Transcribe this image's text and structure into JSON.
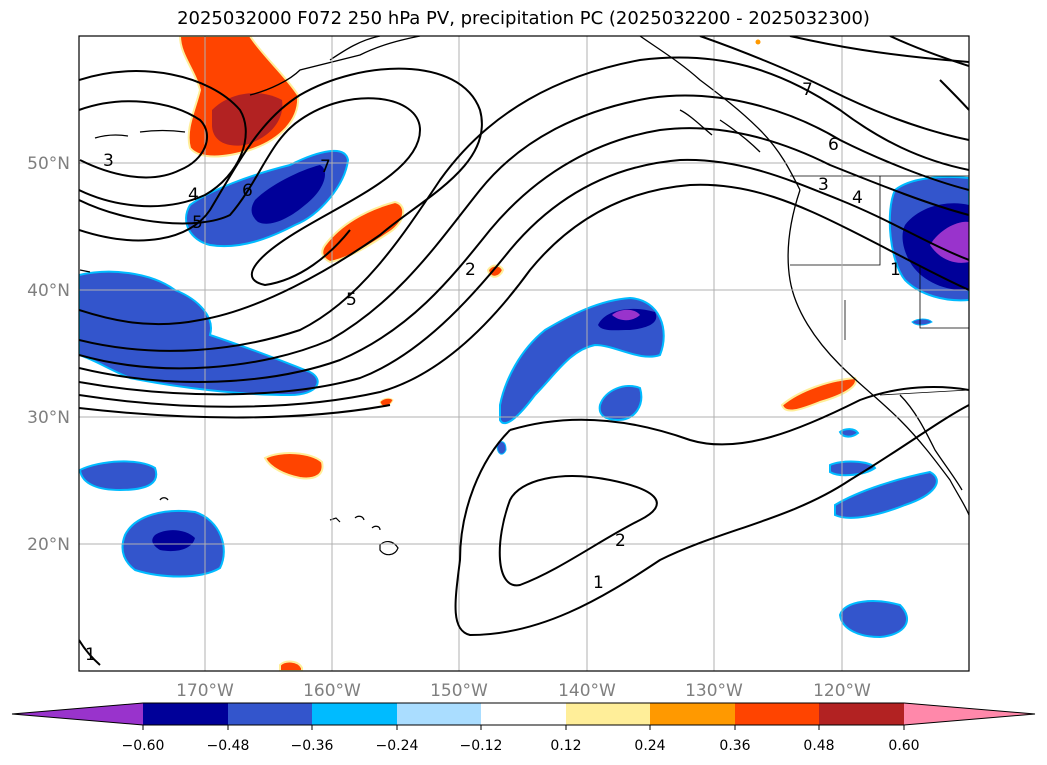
{
  "title": "2025032000 F072 250 hPa PV, precipitation PC (2025032200 - 2025032300)",
  "map": {
    "lat_ticks": [
      "50°N",
      "40°N",
      "30°N",
      "20°N"
    ],
    "lon_ticks": [
      "170°W",
      "160°W",
      "150°W",
      "140°W",
      "130°W",
      "120°W"
    ],
    "gridlines": true
  },
  "pv_contour_labels": [
    "3",
    "4",
    "5",
    "6",
    "7",
    "5",
    "2",
    "7",
    "6",
    "3",
    "4",
    "1",
    "2",
    "1",
    "1"
  ],
  "colorbar": {
    "labels": [
      "−0.60",
      "−0.48",
      "−0.36",
      "−0.24",
      "−0.12",
      "0.12",
      "0.24",
      "0.36",
      "0.48",
      "0.60"
    ],
    "colors": [
      "#9933cc",
      "#000099",
      "#3355cc",
      "#00bbff",
      "#aaddff",
      "#ffffff",
      "#ffee99",
      "#ff9900",
      "#ff4400",
      "#b22222",
      "#ff88aa"
    ]
  }
}
